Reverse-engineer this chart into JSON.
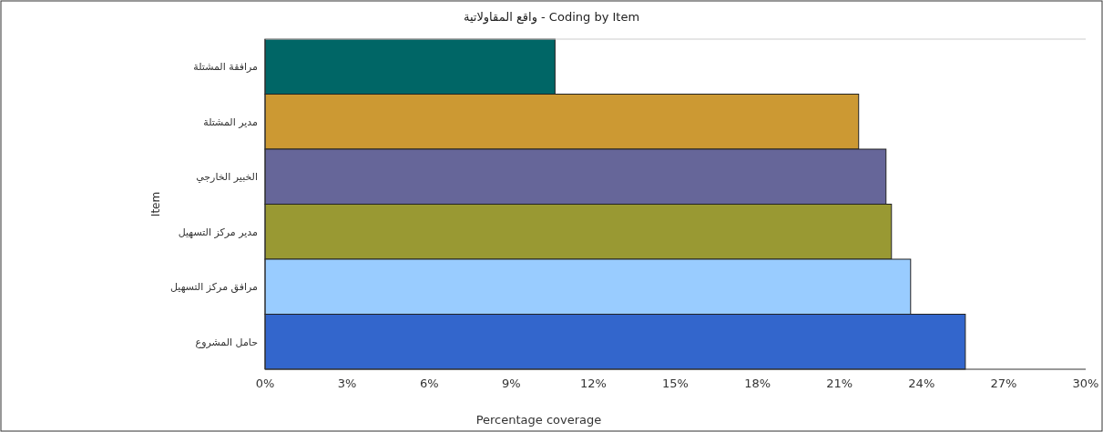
{
  "chart_data": {
    "type": "bar",
    "orientation": "horizontal",
    "title": "واقع المقاولاتية - Coding by Item",
    "xlabel": "Percentage coverage",
    "ylabel": "Item",
    "categories": [
      "مرافقة المشتلة",
      "مدير المشتلة",
      "الخبير الخارجي",
      "مدير مركز التسهيل",
      "مرافق مركز التسهيل",
      "حامل المشروع"
    ],
    "values": [
      10.6,
      21.7,
      22.7,
      22.9,
      23.6,
      25.6
    ],
    "colors": [
      "#006666",
      "#cc9933",
      "#666699",
      "#999933",
      "#99ccff",
      "#3366cc"
    ],
    "xlim": [
      0,
      30
    ],
    "xticks": [
      {
        "value": 0,
        "label": "0%"
      },
      {
        "value": 3,
        "label": "3%"
      },
      {
        "value": 6,
        "label": "6%"
      },
      {
        "value": 9,
        "label": "9%"
      },
      {
        "value": 12,
        "label": "12%"
      },
      {
        "value": 15,
        "label": "15%"
      },
      {
        "value": 18,
        "label": "18%"
      },
      {
        "value": 21,
        "label": "21%"
      },
      {
        "value": 24,
        "label": "24%"
      },
      {
        "value": 27,
        "label": "27%"
      },
      {
        "value": 30,
        "label": "30%"
      }
    ],
    "grid": false
  }
}
